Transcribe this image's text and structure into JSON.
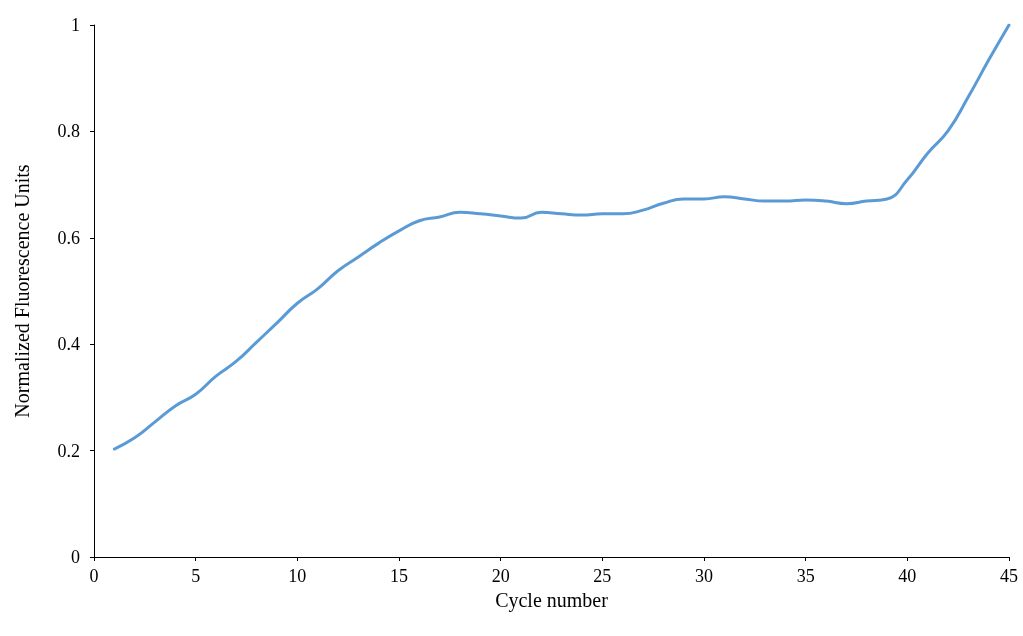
{
  "chart_data": {
    "type": "line",
    "xlabel": "Cycle number",
    "ylabel": "Normalized Fluorescence Units",
    "x": [
      1,
      2,
      3,
      4,
      5,
      6,
      7,
      8,
      9,
      10,
      11,
      12,
      13,
      14,
      15,
      16,
      17,
      18,
      19,
      20,
      21,
      22,
      23,
      24,
      25,
      26,
      27,
      28,
      29,
      30,
      31,
      32,
      33,
      34,
      35,
      36,
      37,
      38,
      39,
      40,
      41,
      42,
      43,
      44,
      45
    ],
    "series": [
      {
        "color": "#5b9bd5",
        "values": [
          0.203,
          0.224,
          0.254,
          0.284,
          0.306,
          0.34,
          0.368,
          0.404,
          0.44,
          0.477,
          0.504,
          0.538,
          0.564,
          0.59,
          0.613,
          0.632,
          0.639,
          0.648,
          0.645,
          0.641,
          0.637,
          0.648,
          0.645,
          0.643,
          0.645,
          0.645,
          0.652,
          0.665,
          0.673,
          0.673,
          0.677,
          0.673,
          0.669,
          0.669,
          0.671,
          0.669,
          0.664,
          0.669,
          0.673,
          0.709,
          0.759,
          0.801,
          0.865,
          0.934,
          1.0
        ]
      }
    ],
    "xlim": [
      0,
      45
    ],
    "xticks": [
      0,
      5,
      10,
      15,
      20,
      25,
      30,
      35,
      40,
      45
    ],
    "ylim": [
      0,
      1
    ],
    "yticks": [
      0,
      0.2,
      0.4,
      0.6,
      0.8,
      1
    ],
    "grid": false,
    "marker": "none",
    "line_style": "solid"
  }
}
